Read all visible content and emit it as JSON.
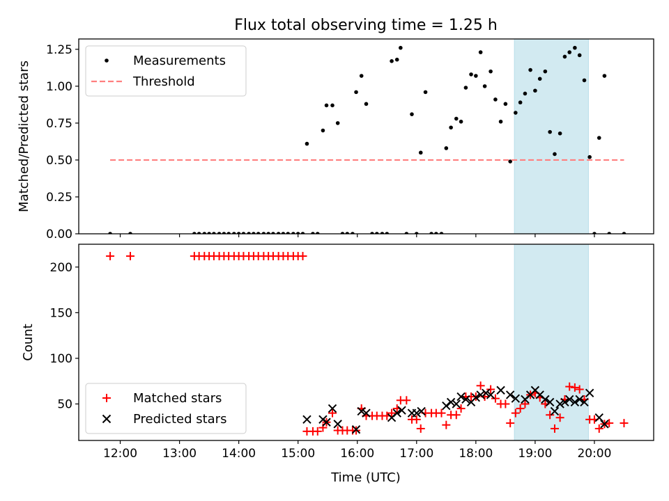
{
  "chart_data": [
    {
      "type": "scatter",
      "title": "Flux total observing time = 1.25 h",
      "xlabel": "",
      "ylabel": "Matched/Predicted stars",
      "x_unit": "time (UTC, hours)",
      "xlim": [
        11.3,
        21.0
      ],
      "ylim": [
        0,
        1.32
      ],
      "yticks": [
        "0.00",
        "0.25",
        "0.50",
        "0.75",
        "1.00",
        "1.25"
      ],
      "grid": false,
      "legend_position": "upper-left",
      "highlight_span": [
        18.65,
        19.9
      ],
      "highlight_color": "#add8e6",
      "series": [
        {
          "name": "Measurements",
          "style": "dot",
          "color": "#000000",
          "x": [
            11.83,
            12.17,
            13.25,
            13.33,
            13.42,
            13.5,
            13.58,
            13.67,
            13.75,
            13.83,
            13.92,
            14.0,
            14.08,
            14.17,
            14.25,
            14.33,
            14.42,
            14.5,
            14.58,
            14.67,
            14.75,
            14.83,
            14.92,
            15.0,
            15.08,
            15.15,
            15.25,
            15.33,
            15.42,
            15.48,
            15.58,
            15.67,
            15.75,
            15.83,
            15.92,
            15.98,
            16.07,
            16.15,
            16.25,
            16.33,
            16.42,
            16.5,
            16.58,
            16.67,
            16.73,
            16.83,
            16.92,
            17.0,
            17.07,
            17.15,
            17.25,
            17.33,
            17.42,
            17.5,
            17.58,
            17.67,
            17.75,
            17.83,
            17.92,
            18.0,
            18.08,
            18.15,
            18.25,
            18.33,
            18.42,
            18.5,
            18.58,
            18.67,
            18.75,
            18.83,
            18.92,
            19.0,
            19.08,
            19.17,
            19.25,
            19.33,
            19.42,
            19.5,
            19.58,
            19.67,
            19.75,
            19.83,
            19.92,
            20.0,
            20.08,
            20.17,
            20.25,
            20.5
          ],
          "y": [
            0.0,
            0.0,
            0.0,
            0.0,
            0.0,
            0.0,
            0.0,
            0.0,
            0.0,
            0.0,
            0.0,
            0.0,
            0.0,
            0.0,
            0.0,
            0.0,
            0.0,
            0.0,
            0.0,
            0.0,
            0.0,
            0.0,
            0.0,
            0.0,
            0.0,
            0.61,
            0.0,
            0.0,
            0.7,
            0.87,
            0.87,
            0.75,
            0.0,
            0.0,
            0.0,
            0.96,
            1.07,
            0.88,
            0.0,
            0.0,
            0.0,
            0.0,
            1.17,
            1.18,
            1.26,
            0.0,
            0.81,
            0.0,
            0.55,
            0.96,
            0.0,
            0.0,
            0.0,
            0.58,
            0.72,
            0.78,
            0.76,
            0.99,
            1.08,
            1.07,
            1.23,
            1.0,
            1.1,
            0.91,
            0.76,
            0.88,
            0.49,
            0.82,
            0.89,
            0.95,
            1.11,
            0.97,
            1.05,
            1.1,
            0.69,
            0.54,
            0.68,
            1.2,
            1.23,
            1.26,
            1.21,
            1.04,
            0.52,
            0.0,
            0.65,
            1.07,
            0.0,
            0.0
          ]
        },
        {
          "name": "Threshold",
          "style": "dashed-line",
          "color": "#ff7f7f",
          "x": [
            11.83,
            20.5
          ],
          "y": [
            0.5,
            0.5
          ]
        }
      ]
    },
    {
      "type": "scatter",
      "title": "",
      "xlabel": "Time (UTC)",
      "ylabel": "Count",
      "x_unit": "time (UTC, hours)",
      "xlim": [
        11.3,
        21.0
      ],
      "ylim": [
        10,
        225
      ],
      "yticks": [
        "50",
        "100",
        "150",
        "200"
      ],
      "xticks": [
        "12:00",
        "13:00",
        "14:00",
        "15:00",
        "16:00",
        "17:00",
        "18:00",
        "19:00",
        "20:00"
      ],
      "grid": false,
      "legend_position": "lower-left",
      "highlight_span": [
        18.65,
        19.9
      ],
      "highlight_color": "#add8e6",
      "series": [
        {
          "name": "Matched stars",
          "style": "plus",
          "color": "#ff0000",
          "x": [
            11.83,
            12.17,
            13.25,
            13.33,
            13.42,
            13.5,
            13.58,
            13.67,
            13.75,
            13.83,
            13.92,
            14.0,
            14.08,
            14.17,
            14.25,
            14.33,
            14.42,
            14.5,
            14.58,
            14.67,
            14.75,
            14.83,
            14.92,
            15.0,
            15.08,
            15.15,
            15.25,
            15.33,
            15.42,
            15.48,
            15.58,
            15.67,
            15.75,
            15.83,
            15.92,
            15.98,
            16.07,
            16.15,
            16.25,
            16.33,
            16.42,
            16.5,
            16.58,
            16.67,
            16.73,
            16.83,
            16.92,
            17.0,
            17.07,
            17.15,
            17.25,
            17.33,
            17.42,
            17.5,
            17.58,
            17.67,
            17.75,
            17.83,
            17.92,
            18.0,
            18.08,
            18.15,
            18.25,
            18.33,
            18.42,
            18.5,
            18.58,
            18.67,
            18.75,
            18.83,
            18.92,
            19.0,
            19.08,
            19.17,
            19.25,
            19.33,
            19.42,
            19.5,
            19.58,
            19.67,
            19.75,
            19.83,
            19.92,
            20.0,
            20.08,
            20.17,
            20.25,
            20.5
          ],
          "y": [
            212,
            212,
            212,
            212,
            212,
            212,
            212,
            212,
            212,
            212,
            212,
            212,
            212,
            212,
            212,
            212,
            212,
            212,
            212,
            212,
            212,
            212,
            212,
            212,
            212,
            20,
            20,
            20,
            24,
            30,
            40,
            21,
            21,
            21,
            21,
            21,
            45,
            37,
            37,
            37,
            37,
            37,
            40,
            45,
            54,
            54,
            33,
            33,
            23,
            40,
            40,
            40,
            40,
            27,
            38,
            38,
            45,
            58,
            58,
            58,
            70,
            58,
            66,
            56,
            50,
            50,
            29,
            40,
            45,
            50,
            60,
            62,
            57,
            50,
            38,
            23,
            35,
            55,
            69,
            68,
            66,
            55,
            33,
            33,
            23,
            28,
            29,
            29
          ]
        },
        {
          "name": "Predicted stars",
          "style": "cross",
          "color": "#000000",
          "x": [
            15.15,
            15.42,
            15.48,
            15.58,
            15.67,
            15.98,
            16.07,
            16.15,
            16.58,
            16.67,
            16.75,
            16.92,
            17.0,
            17.08,
            17.5,
            17.58,
            17.67,
            17.75,
            17.83,
            17.92,
            18.0,
            18.08,
            18.17,
            18.25,
            18.42,
            18.58,
            18.67,
            18.83,
            18.92,
            19.0,
            19.08,
            19.17,
            19.25,
            19.33,
            19.42,
            19.5,
            19.58,
            19.67,
            19.75,
            19.83,
            19.92,
            20.08,
            20.17
          ],
          "y": [
            33,
            33,
            30,
            45,
            28,
            22,
            42,
            40,
            35,
            40,
            43,
            40,
            40,
            42,
            48,
            52,
            50,
            58,
            55,
            52,
            57,
            60,
            62,
            60,
            65,
            60,
            56,
            55,
            60,
            65,
            60,
            55,
            52,
            42,
            50,
            52,
            55,
            52,
            55,
            52,
            62,
            35,
            28
          ]
        }
      ]
    }
  ]
}
